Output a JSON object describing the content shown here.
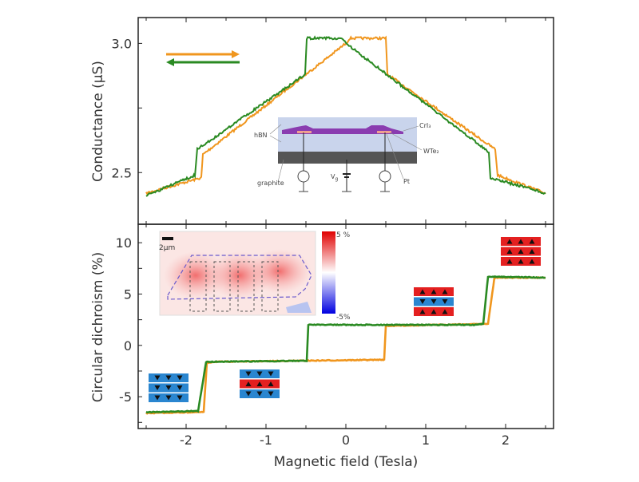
{
  "colors": {
    "sweep_up": "#f0961e",
    "sweep_down": "#2a8a22",
    "layer_up": "#e42020",
    "layer_down": "#2a86d0"
  },
  "chart_data": [
    {
      "type": "line",
      "panel": "top",
      "ylabel": "Conductance (µS)",
      "xlim": [
        -2.6,
        2.6
      ],
      "ylim": [
        2.3,
        3.1
      ],
      "yticks": [
        2.5,
        2.75,
        3.0
      ],
      "ytick_labels": [
        "2.5",
        "",
        "3.0"
      ],
      "grid": false,
      "legend": {
        "placement": "top-left",
        "entries": [
          {
            "icon": "right-arrow",
            "series": 0
          },
          {
            "icon": "left-arrow",
            "series": 1
          }
        ]
      },
      "series": [
        {
          "direction": "up",
          "color": "#f0961e",
          "points": [
            [
              -2.5,
              2.42
            ],
            [
              -1.81,
              2.48
            ],
            [
              -1.79,
              2.57
            ],
            [
              0,
              3.0
            ],
            [
              0.05,
              3.02
            ],
            [
              0.5,
              3.02
            ],
            [
              0.52,
              2.88
            ],
            [
              1.87,
              2.59
            ],
            [
              1.9,
              2.49
            ],
            [
              2.5,
              2.42
            ]
          ]
        },
        {
          "direction": "down",
          "color": "#2a8a22",
          "points": [
            [
              2.5,
              2.42
            ],
            [
              1.81,
              2.48
            ],
            [
              1.79,
              2.58
            ],
            [
              0,
              3.0
            ],
            [
              -0.05,
              3.02
            ],
            [
              -0.49,
              3.02
            ],
            [
              -0.51,
              2.88
            ],
            [
              -1.86,
              2.59
            ],
            [
              -1.89,
              2.49
            ],
            [
              -2.5,
              2.41
            ]
          ]
        }
      ],
      "inset_schematic": {
        "labels": {
          "crI3": "CrI₃",
          "hbn": "hBN",
          "wte2": "WTe₂",
          "pt": "Pt",
          "graphite": "graphite",
          "vg": "V",
          "vg_sub": "g"
        }
      }
    },
    {
      "type": "line",
      "panel": "bottom",
      "xlabel": "Magnetic field (Tesla)",
      "ylabel": "Circular dichroism (%)",
      "xlim": [
        -2.6,
        2.6
      ],
      "ylim": [
        -8.1,
        11.8
      ],
      "xticks": [
        -2,
        -1,
        0,
        1,
        2
      ],
      "xtick_labels": [
        "-2",
        "-1",
        "0",
        "1",
        "2"
      ],
      "yticks": [
        -5,
        0,
        5,
        10
      ],
      "ytick_labels": [
        "-5",
        "0",
        "5",
        "10"
      ],
      "grid": false,
      "series": [
        {
          "direction": "up",
          "color": "#f0961e",
          "points": [
            [
              -2.5,
              -6.6
            ],
            [
              -1.78,
              -6.5
            ],
            [
              -1.74,
              -1.7
            ],
            [
              -1.65,
              -1.6
            ],
            [
              0.48,
              -1.4
            ],
            [
              0.5,
              1.9
            ],
            [
              1.78,
              2.1
            ],
            [
              1.86,
              6.6
            ],
            [
              2.5,
              6.6
            ]
          ]
        },
        {
          "direction": "down",
          "color": "#2a8a22",
          "points": [
            [
              2.5,
              6.6
            ],
            [
              1.78,
              6.7
            ],
            [
              1.72,
              2.1
            ],
            [
              1.6,
              2.0
            ],
            [
              -0.47,
              2.0
            ],
            [
              -0.49,
              -1.5
            ],
            [
              -1.75,
              -1.6
            ],
            [
              -1.85,
              -6.4
            ],
            [
              -2.5,
              -6.5
            ]
          ]
        }
      ],
      "layer_states": [
        {
          "layers": [
            "down",
            "down",
            "down"
          ]
        },
        {
          "layers": [
            "down",
            "up",
            "down"
          ]
        },
        {
          "layers": [
            "up",
            "down",
            "up"
          ]
        },
        {
          "layers": [
            "up",
            "up",
            "up"
          ]
        }
      ],
      "inset_map": {
        "scale_bar": "2µm",
        "colorbar_max": "5 %",
        "colorbar_min": "-5%"
      }
    }
  ]
}
